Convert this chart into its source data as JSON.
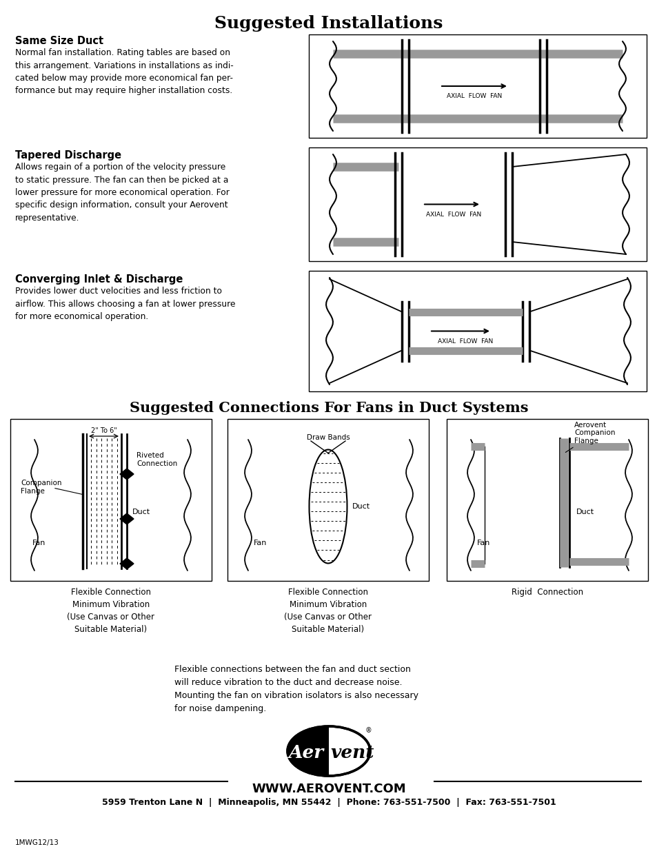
{
  "title_installations": "Suggested Installations",
  "title_connections": "Suggested Connections For Fans in Duct Systems",
  "section1_title": "Same Size Duct",
  "section1_text": "Normal fan installation. Rating tables are based on\nthis arrangement. Variations in installations as indi-\ncated below may provide more economical fan per-\nformance but may require higher installation costs.",
  "section2_title": "Tapered Discharge",
  "section2_text": "Allows regain of a portion of the velocity pressure\nto static pressure. The fan can then be picked at a\nlower pressure for more economical operation. For\nspecific design information, consult your Aerovent\nrepresentative.",
  "section3_title": "Converging Inlet & Discharge",
  "section3_text": "Provides lower duct velocities and less friction to\nairflow. This allows choosing a fan at lower pressure\nfor more economical operation.",
  "conn1_label": "Flexible Connection\nMinimum Vibration\n(Use Canvas or Other\nSuitable Material)",
  "conn2_label": "Flexible Connection\nMinimum Vibration\n(Use Canvas or Other\nSuitable Material)",
  "conn3_label": "Rigid  Connection",
  "flex_text": "Flexible connections between the fan and duct section\nwill reduce vibration to the duct and decrease noise.\nMounting the fan on vibration isolators is also necessary\nfor noise dampening.",
  "website": "WWW.AEROVENT.COM",
  "address": "5959 Trenton Lane N  |  Minneapolis, MN 55442  |  Phone: 763-551-7500  |  Fax: 763-551-7501",
  "doc_id": "1MWG12/13",
  "bg_color": "#ffffff",
  "lc": "#000000",
  "gc": "#999999"
}
